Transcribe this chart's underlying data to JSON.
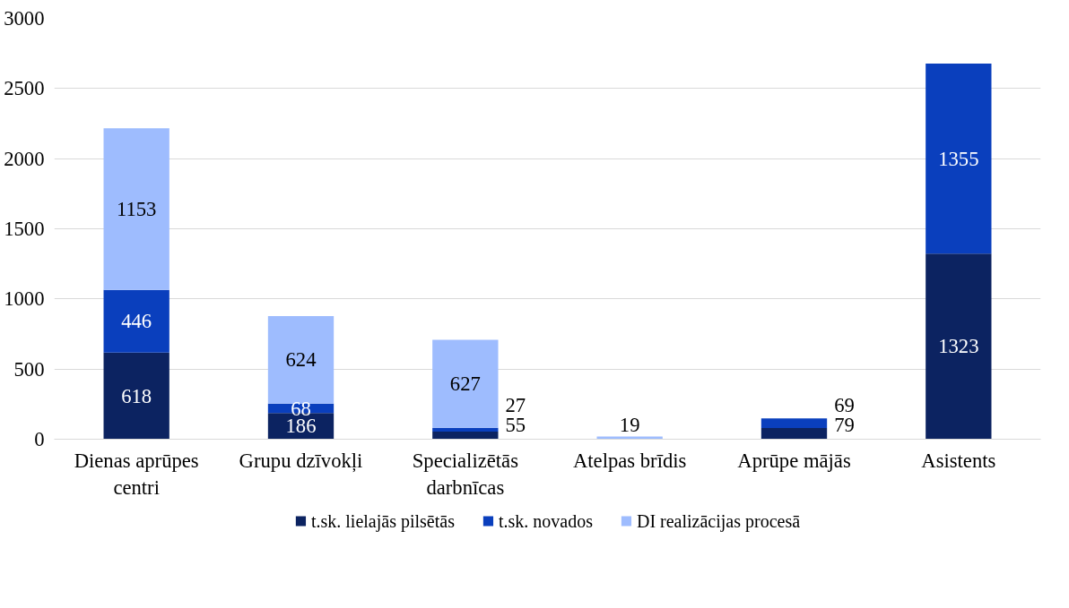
{
  "chart_data": {
    "type": "bar",
    "stacked": true,
    "categories": [
      "Dienas aprūpes centri",
      "Grupu dzīvokļi",
      "Specializētās darbnīcas",
      "Atelpas brīdis",
      "Aprūpe mājās",
      "Asistents"
    ],
    "series": [
      {
        "name": "t.sk. lielajās pilsētās",
        "color": "#0c2361",
        "values": [
          618,
          186,
          55,
          null,
          79,
          1323
        ]
      },
      {
        "name": "t.sk. novados",
        "color": "#0a3fbd",
        "values": [
          446,
          68,
          27,
          null,
          69,
          1355
        ]
      },
      {
        "name": "DI realizācijas procesā",
        "color": "#9ebcfe",
        "values": [
          1153,
          624,
          627,
          19,
          null,
          null
        ]
      }
    ],
    "ylim": [
      0,
      3000
    ],
    "yticks": [
      0,
      500,
      1000,
      1500,
      2000,
      2500,
      3000
    ],
    "grid": "y",
    "legend": "bottom",
    "data_labels": true
  }
}
